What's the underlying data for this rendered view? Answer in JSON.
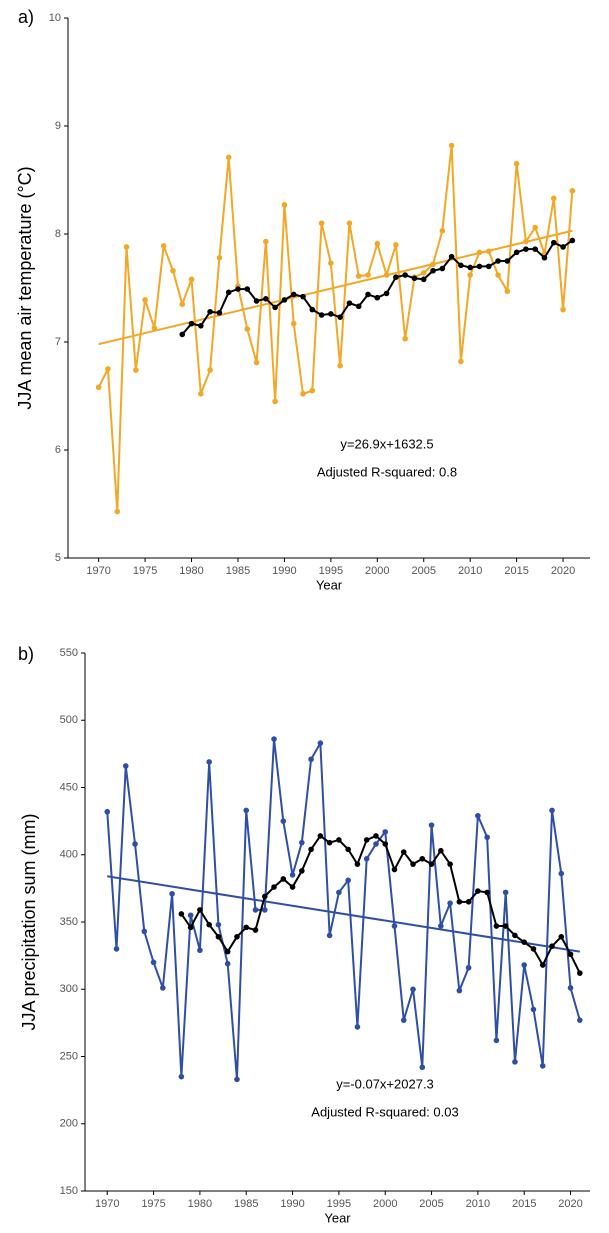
{
  "chart_data": [
    {
      "type": "line",
      "panel_label": "a)",
      "xlabel": "Year",
      "ylabel": "JJA mean air temperature (°C)",
      "xlim": [
        1966.7,
        2022.9
      ],
      "xticks": [
        1970,
        1975,
        1980,
        1985,
        1990,
        1995,
        2000,
        2005,
        2010,
        2015,
        2020
      ],
      "ylim": [
        5,
        10
      ],
      "yticks": [
        5,
        6,
        7,
        8,
        9,
        10
      ],
      "annotations": [
        "y=26.9x+1632.5",
        "Adjusted R-squared:  0.8"
      ],
      "series": [
        {
          "color": "#f2a726",
          "markers": true,
          "x": [
            1970,
            1971,
            1972,
            1973,
            1974,
            1975,
            1976,
            1977,
            1978,
            1979,
            1980,
            1981,
            1982,
            1983,
            1984,
            1985,
            1986,
            1987,
            1988,
            1989,
            1990,
            1991,
            1992,
            1993,
            1994,
            1995,
            1996,
            1997,
            1998,
            1999,
            2000,
            2001,
            2002,
            2003,
            2004,
            2005,
            2006,
            2007,
            2008,
            2009,
            2010,
            2011,
            2012,
            2013,
            2014,
            2015,
            2016,
            2017,
            2018,
            2019,
            2020,
            2021
          ],
          "values": [
            6.58,
            6.75,
            5.43,
            7.88,
            6.74,
            7.39,
            7.13,
            7.89,
            7.66,
            7.35,
            7.58,
            6.52,
            6.74,
            7.78,
            8.71,
            7.52,
            7.12,
            6.81,
            7.93,
            6.45,
            8.27,
            7.17,
            6.52,
            6.55,
            8.1,
            7.73,
            6.78,
            8.1,
            7.61,
            7.62,
            7.91,
            7.62,
            7.9,
            7.03,
            7.6,
            7.64,
            7.72,
            8.03,
            8.82,
            6.82,
            7.62,
            7.83,
            7.84,
            7.62,
            7.47,
            8.65,
            7.93,
            8.06,
            7.82,
            8.33,
            7.3,
            8.4
          ]
        },
        {
          "color": "#f2a726",
          "markers": false,
          "x": [
            1970,
            2021
          ],
          "values": [
            6.98,
            8.03
          ]
        },
        {
          "color": "#000000",
          "markers": true,
          "x": [
            1979,
            1980,
            1981,
            1982,
            1983,
            1984,
            1985,
            1986,
            1987,
            1988,
            1989,
            1990,
            1991,
            1992,
            1993,
            1994,
            1995,
            1996,
            1997,
            1998,
            1999,
            2000,
            2001,
            2002,
            2003,
            2004,
            2005,
            2006,
            2007,
            2008,
            2009,
            2010,
            2011,
            2012,
            2013,
            2014,
            2015,
            2016,
            2017,
            2018,
            2019,
            2020,
            2021
          ],
          "values": [
            7.07,
            7.17,
            7.15,
            7.28,
            7.27,
            7.46,
            7.49,
            7.49,
            7.38,
            7.4,
            7.32,
            7.39,
            7.44,
            7.42,
            7.3,
            7.25,
            7.26,
            7.23,
            7.36,
            7.33,
            7.44,
            7.41,
            7.45,
            7.6,
            7.62,
            7.59,
            7.58,
            7.66,
            7.68,
            7.79,
            7.71,
            7.69,
            7.7,
            7.7,
            7.75,
            7.75,
            7.83,
            7.86,
            7.86,
            7.78,
            7.92,
            7.88,
            7.94
          ]
        }
      ]
    },
    {
      "type": "line",
      "panel_label": "b)",
      "xlabel": "Year",
      "ylabel": "JJA precipitation sum (mm)",
      "xlim": [
        1967.6,
        2022.1
      ],
      "xticks": [
        1970,
        1975,
        1980,
        1985,
        1990,
        1995,
        2000,
        2005,
        2010,
        2015,
        2020
      ],
      "ylim": [
        150,
        550
      ],
      "yticks": [
        150,
        200,
        250,
        300,
        350,
        400,
        450,
        500,
        550
      ],
      "annotations": [
        "y=-0.07x+2027.3",
        "Adjusted R-squared:  0.03"
      ],
      "series": [
        {
          "color": "#2f4fa6",
          "markers": true,
          "x": [
            1970,
            1971,
            1972,
            1973,
            1974,
            1975,
            1976,
            1977,
            1978,
            1979,
            1980,
            1981,
            1982,
            1983,
            1984,
            1985,
            1986,
            1987,
            1988,
            1989,
            1990,
            1991,
            1992,
            1993,
            1994,
            1995,
            1996,
            1997,
            1998,
            1999,
            2000,
            2001,
            2002,
            2003,
            2004,
            2005,
            2006,
            2007,
            2008,
            2009,
            2010,
            2011,
            2012,
            2013,
            2014,
            2015,
            2016,
            2017,
            2018,
            2019,
            2020,
            2021
          ],
          "values": [
            432,
            330,
            466,
            408,
            343,
            320,
            301,
            371,
            235,
            355,
            329,
            469,
            348,
            319,
            233,
            433,
            359,
            359,
            486,
            425,
            385,
            409,
            471,
            483,
            340,
            372,
            381,
            272,
            397,
            408,
            417,
            347,
            277,
            300,
            242,
            422,
            347,
            364,
            299,
            316,
            429,
            413,
            262,
            372,
            246,
            318,
            285,
            243,
            433,
            386,
            301,
            277
          ]
        },
        {
          "color": "#2f4fa6",
          "markers": false,
          "x": [
            1970,
            2021
          ],
          "values": [
            384,
            328
          ]
        },
        {
          "color": "#000000",
          "markers": true,
          "x": [
            1978,
            1979,
            1980,
            1981,
            1982,
            1983,
            1984,
            1985,
            1986,
            1987,
            1988,
            1989,
            1990,
            1991,
            1992,
            1993,
            1994,
            1995,
            1996,
            1997,
            1998,
            1999,
            2000,
            2001,
            2002,
            2003,
            2004,
            2005,
            2006,
            2007,
            2008,
            2009,
            2010,
            2011,
            2012,
            2013,
            2014,
            2015,
            2016,
            2017,
            2018,
            2019,
            2020,
            2021
          ],
          "values": [
            356,
            346,
            359,
            348,
            339,
            328,
            339,
            346,
            344,
            369,
            376,
            382,
            376,
            388,
            404,
            414,
            409,
            411,
            404,
            393,
            411,
            414,
            408,
            389,
            402,
            393,
            397,
            393,
            403,
            393,
            365,
            365,
            373,
            372,
            347,
            347,
            340,
            335,
            330,
            318,
            332,
            339,
            326,
            312
          ]
        }
      ]
    }
  ]
}
